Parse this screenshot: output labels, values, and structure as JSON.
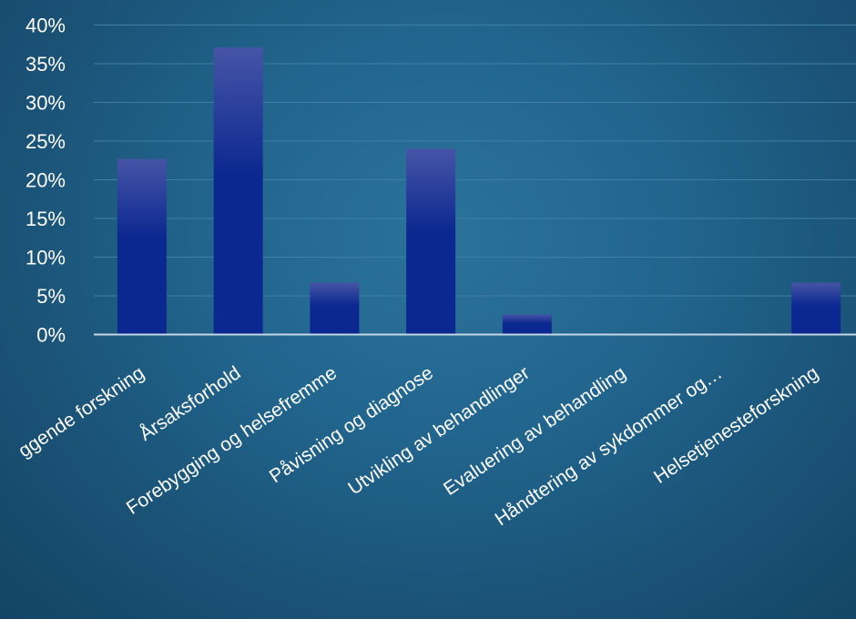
{
  "chart_data": {
    "type": "bar",
    "categories": [
      "Grunnleggende forskning",
      "Årsaksforhold",
      "Forebygging og helsefremme",
      "Påvisning og diagnose",
      "Utvikling av behandlinger",
      "Evaluering av behandling",
      "Håndtering av sykdommer og…",
      "Helsetjenesteforskning"
    ],
    "category_labels_shown": [
      "ggende forskning",
      "Årsaksforhold",
      "Forebygging og helsefremme",
      "Påvisning og diagnose",
      "Utvikling av behandlinger",
      "Evaluering av behandling",
      "Håndtering av sykdommer og…",
      "Helsetjenesteforskning"
    ],
    "values": [
      22.7,
      37.1,
      6.7,
      24.0,
      2.6,
      0,
      0,
      6.7
    ],
    "title": "",
    "xlabel": "",
    "ylabel": "",
    "ylim": [
      0,
      40
    ],
    "yticks": [
      "0%",
      "5%",
      "10%",
      "15%",
      "20%",
      "25%",
      "30%",
      "35%",
      "40%"
    ],
    "grid": true,
    "legend": "none",
    "colors": {
      "bar_top": "#4654a6",
      "bar_bottom": "#0b2890",
      "axis": "#c9d6e2",
      "grid": "#3f7fa6",
      "text": "#ffffff"
    }
  }
}
